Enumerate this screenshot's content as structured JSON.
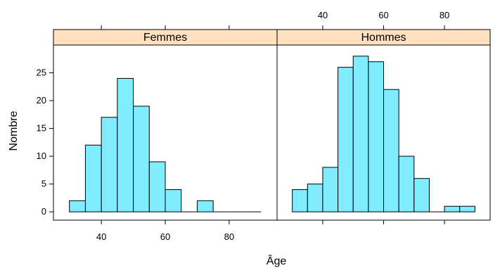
{
  "chart_data": {
    "type": "bar",
    "layout": "histogram-trellis",
    "xlabel": "Âge",
    "ylabel": "Nombre",
    "xlim": [
      25,
      95
    ],
    "ylim": [
      -1.5,
      30
    ],
    "x_ticks": [
      40,
      60,
      80
    ],
    "y_ticks": [
      0,
      5,
      10,
      15,
      20,
      25
    ],
    "bins": [
      [
        30,
        35
      ],
      [
        35,
        40
      ],
      [
        40,
        45
      ],
      [
        45,
        50
      ],
      [
        50,
        55
      ],
      [
        55,
        60
      ],
      [
        60,
        65
      ],
      [
        65,
        70
      ],
      [
        70,
        75
      ],
      [
        75,
        80
      ],
      [
        80,
        85
      ],
      [
        85,
        90
      ]
    ],
    "colors": {
      "bar_fill": "#80ecff",
      "strip_fill": "#ffe1c0",
      "bar_stroke": "#000000"
    },
    "panels": [
      {
        "name": "Femmes",
        "values": [
          2,
          12,
          17,
          24,
          19,
          9,
          4,
          0,
          2,
          0,
          0,
          0
        ]
      },
      {
        "name": "Hommes",
        "values": [
          4,
          5,
          8,
          26,
          28,
          27,
          22,
          10,
          6,
          0,
          1,
          1
        ]
      }
    ]
  }
}
